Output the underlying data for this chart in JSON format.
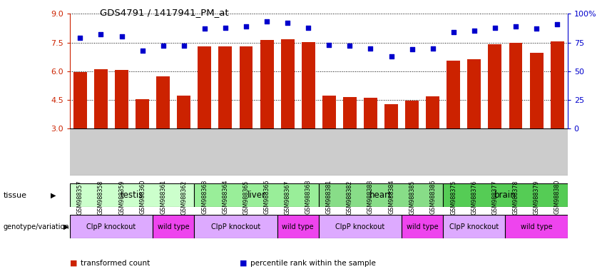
{
  "title": "GDS4791 / 1417941_PM_at",
  "samples": [
    "GSM988357",
    "GSM988358",
    "GSM988359",
    "GSM988360",
    "GSM988361",
    "GSM988362",
    "GSM988363",
    "GSM988364",
    "GSM988365",
    "GSM988366",
    "GSM988367",
    "GSM988368",
    "GSM988381",
    "GSM988382",
    "GSM988383",
    "GSM988384",
    "GSM988385",
    "GSM988386",
    "GSM988375",
    "GSM988376",
    "GSM988377",
    "GSM988378",
    "GSM988379",
    "GSM988380"
  ],
  "bar_values": [
    5.95,
    6.1,
    6.05,
    4.55,
    5.75,
    4.72,
    7.28,
    7.3,
    7.3,
    7.62,
    7.65,
    7.52,
    4.72,
    4.65,
    4.62,
    4.3,
    4.48,
    4.68,
    6.55,
    6.62,
    7.42,
    7.48,
    6.95,
    7.55
  ],
  "dot_values": [
    79,
    82,
    80,
    68,
    72,
    72,
    87,
    88,
    89,
    93,
    92,
    88,
    73,
    72,
    70,
    63,
    69,
    70,
    84,
    85,
    88,
    89,
    87,
    91
  ],
  "bar_color": "#cc2200",
  "dot_color": "#0000cc",
  "ylim_left": [
    3,
    9
  ],
  "ylim_right": [
    0,
    100
  ],
  "yticks_left": [
    3,
    4.5,
    6,
    7.5,
    9
  ],
  "yticks_right": [
    0,
    25,
    50,
    75,
    100
  ],
  "ytick_labels_right": [
    "0",
    "25",
    "50",
    "75",
    "100%"
  ],
  "tissue_groups": [
    {
      "label": "testis",
      "start": 0,
      "end": 6,
      "color": "#ccffcc"
    },
    {
      "label": "liver",
      "start": 6,
      "end": 12,
      "color": "#99ee99"
    },
    {
      "label": "heart",
      "start": 12,
      "end": 18,
      "color": "#88dd88"
    },
    {
      "label": "brain",
      "start": 18,
      "end": 24,
      "color": "#55cc55"
    }
  ],
  "genotype_groups": [
    {
      "label": "ClpP knockout",
      "start": 0,
      "end": 4,
      "color": "#ddaaff"
    },
    {
      "label": "wild type",
      "start": 4,
      "end": 6,
      "color": "#ee44ee"
    },
    {
      "label": "ClpP knockout",
      "start": 6,
      "end": 10,
      "color": "#ddaaff"
    },
    {
      "label": "wild type",
      "start": 10,
      "end": 12,
      "color": "#ee44ee"
    },
    {
      "label": "ClpP knockout",
      "start": 12,
      "end": 16,
      "color": "#ddaaff"
    },
    {
      "label": "wild type",
      "start": 16,
      "end": 18,
      "color": "#ee44ee"
    },
    {
      "label": "ClpP knockout",
      "start": 18,
      "end": 21,
      "color": "#ddaaff"
    },
    {
      "label": "wild type",
      "start": 21,
      "end": 24,
      "color": "#ee44ee"
    }
  ],
  "legend_items": [
    {
      "label": "transformed count",
      "color": "#cc2200"
    },
    {
      "label": "percentile rank within the sample",
      "color": "#0000cc"
    }
  ],
  "xtick_bg_color": "#cccccc",
  "dotted_line_color": "#000000"
}
